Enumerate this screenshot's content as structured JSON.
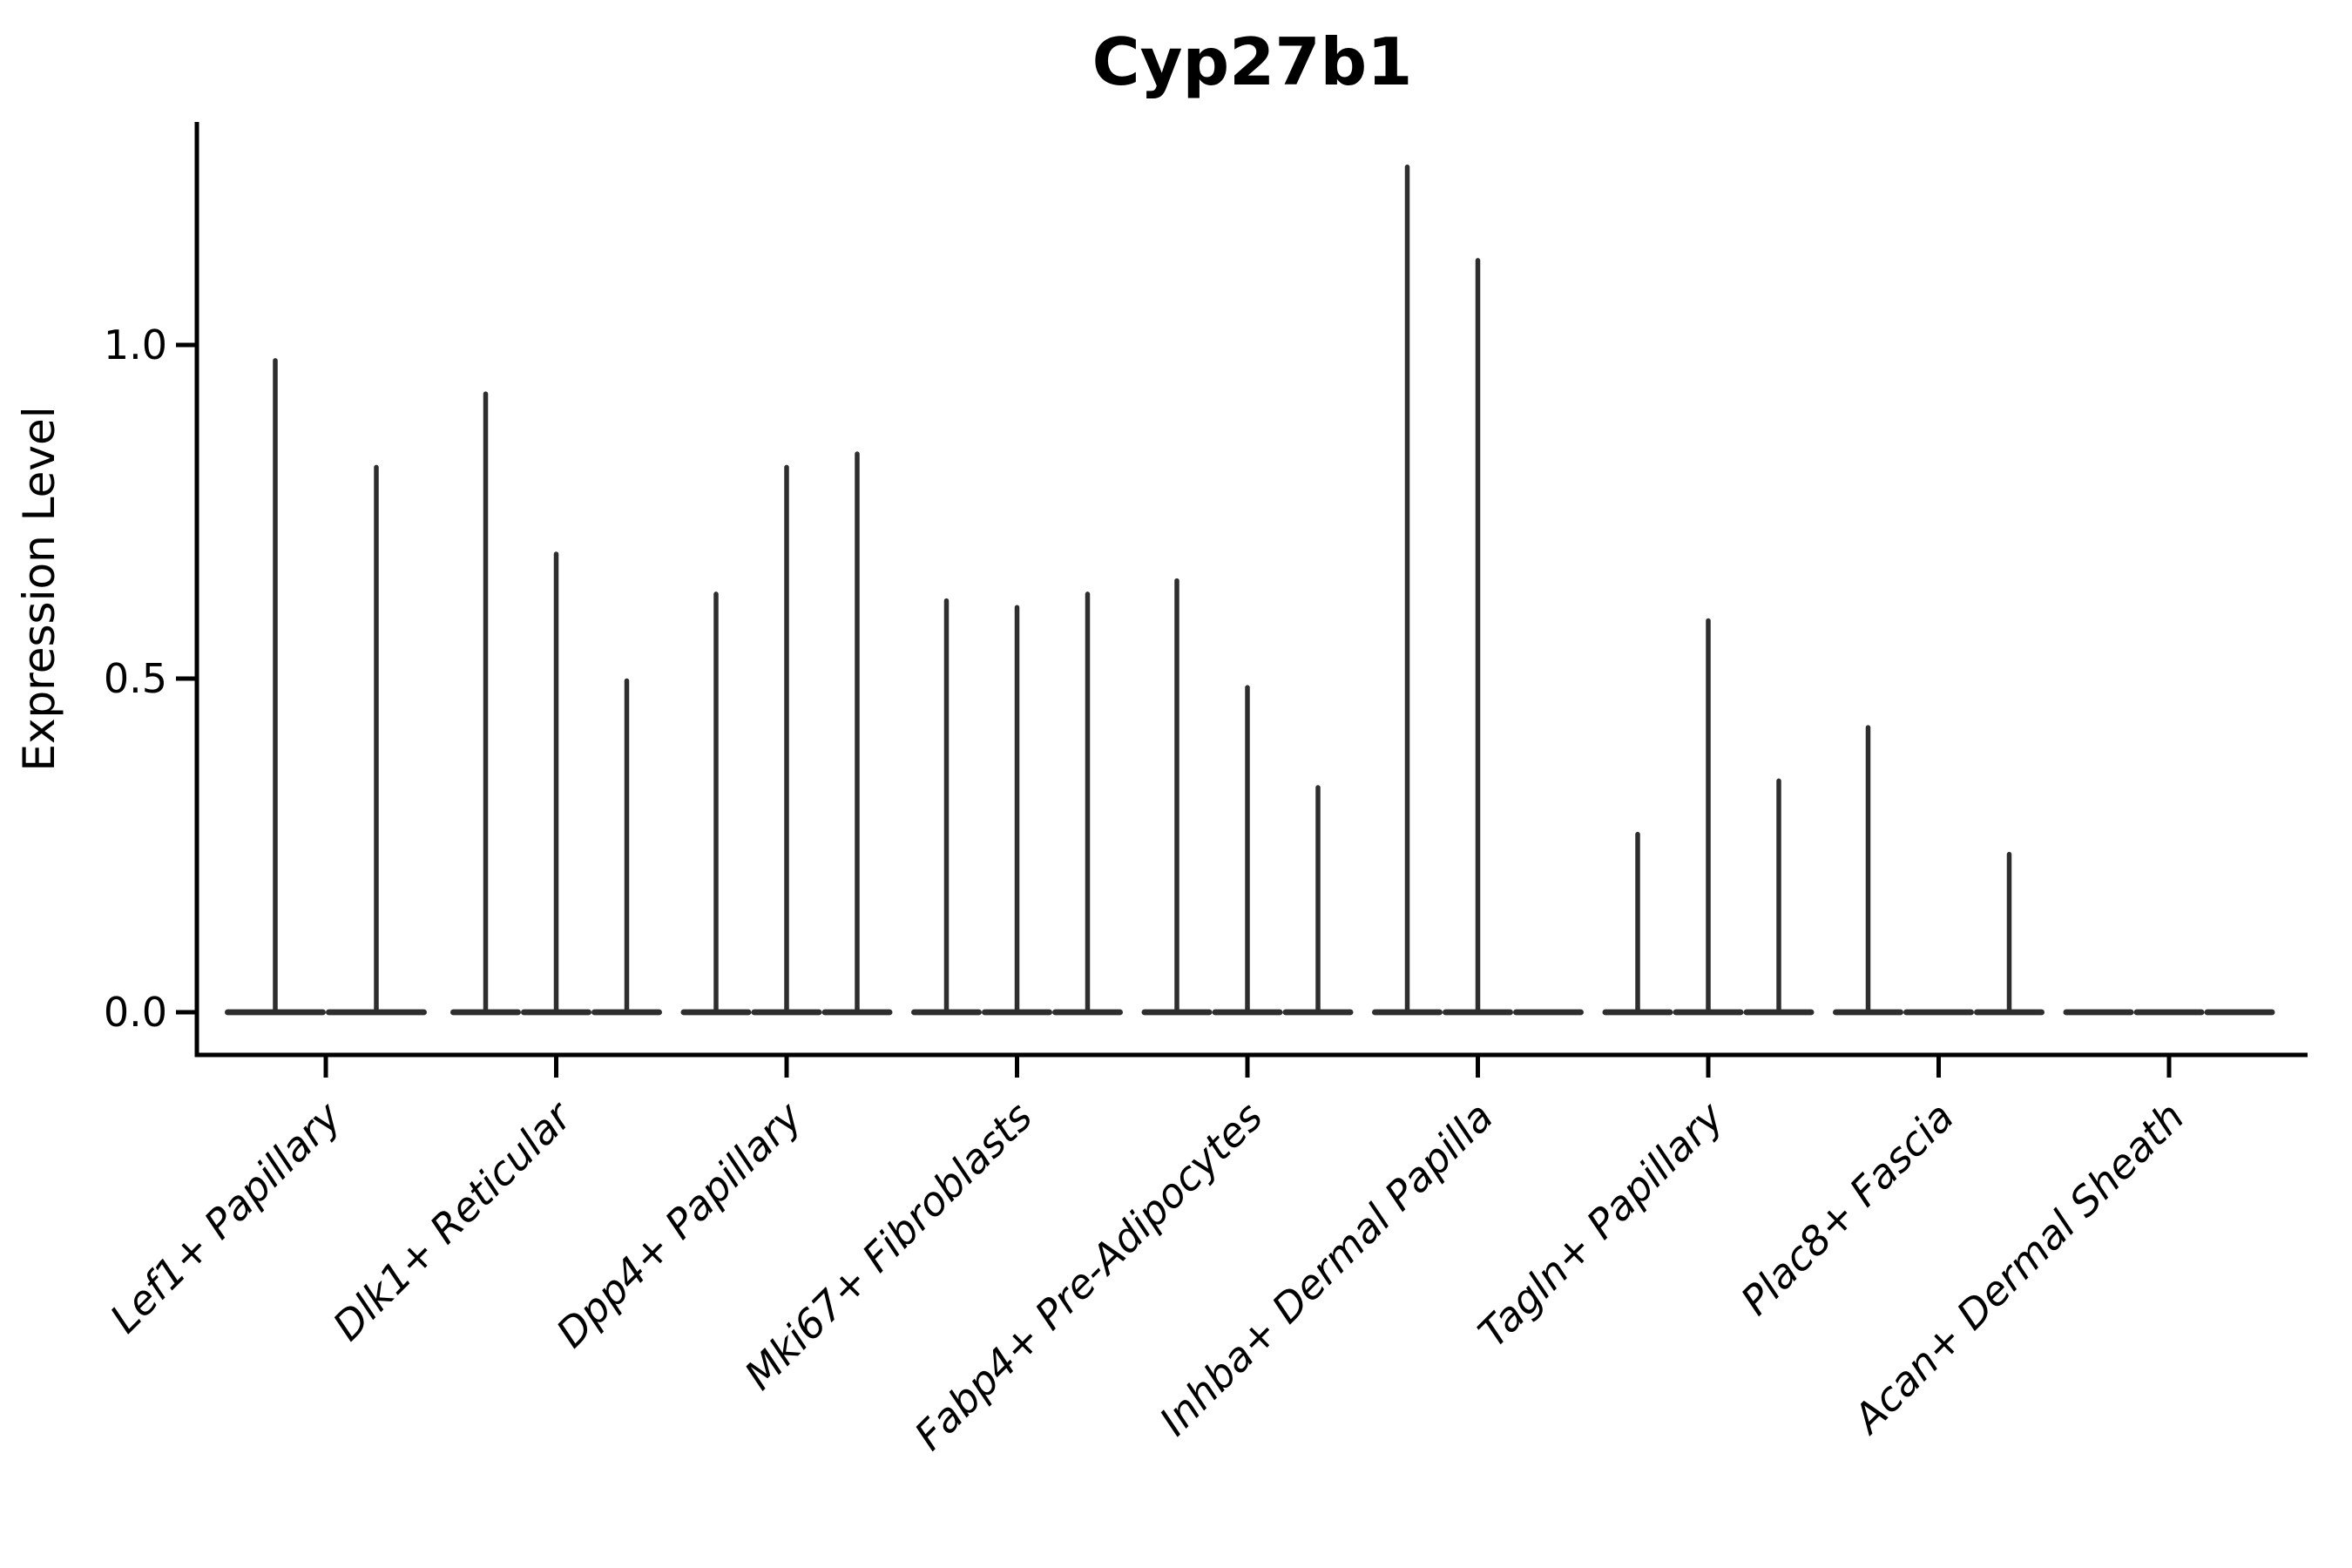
{
  "title": "Cyp27b1",
  "y_axis": {
    "label": "Expression Level",
    "ticks": [
      {
        "label": "0.0",
        "value": 0.0
      },
      {
        "label": "0.5",
        "value": 0.5
      },
      {
        "label": "1.0",
        "value": 1.0
      }
    ]
  },
  "style": {
    "violin_color": "#2e2e2e",
    "axis_color": "#000000",
    "background_color": "#ffffff"
  },
  "chart_data": {
    "type": "violin",
    "title": "Cyp27b1",
    "xlabel": "",
    "ylabel": "Expression Level",
    "ylim": [
      -0.064,
      1.334
    ],
    "grid": false,
    "legend": "none",
    "note": "Each category shows thin zero-inflated violins (flat base at 0 with a narrow spike up to the max expression value per violin).",
    "categories": [
      "Lef1+ Papillary",
      "Dlk1+ Reticular",
      "Dpp4+ Papillary",
      "Mki67+ Fibroblasts",
      "Fabp4+ Pre-Adipocytes",
      "Inhba+ Dermal Papilla",
      "Tagln+ Papillary",
      "Plac8+ Fascia",
      "Acan+ Dermal Sheath"
    ],
    "series": [
      {
        "category": "Lef1+ Papillary",
        "violin_maxes": [
          0.98,
          0.82
        ]
      },
      {
        "category": "Dlk1+ Reticular",
        "violin_maxes": [
          0.93,
          0.69,
          0.5
        ]
      },
      {
        "category": "Dpp4+ Papillary",
        "violin_maxes": [
          0.63,
          0.82,
          0.84
        ]
      },
      {
        "category": "Mki67+ Fibroblasts",
        "violin_maxes": [
          0.62,
          0.61,
          0.63
        ]
      },
      {
        "category": "Fabp4+ Pre-Adipocytes",
        "violin_maxes": [
          0.65,
          0.49,
          0.34
        ]
      },
      {
        "category": "Inhba+ Dermal Papilla",
        "violin_maxes": [
          1.27,
          1.13,
          0.0
        ]
      },
      {
        "category": "Tagln+ Papillary",
        "violin_maxes": [
          0.27,
          0.59,
          0.35
        ]
      },
      {
        "category": "Plac8+ Fascia",
        "violin_maxes": [
          0.43,
          0.0,
          0.24
        ]
      },
      {
        "category": "Acan+ Dermal Sheath",
        "violin_maxes": [
          0.0,
          0.0,
          0.0
        ]
      }
    ]
  }
}
